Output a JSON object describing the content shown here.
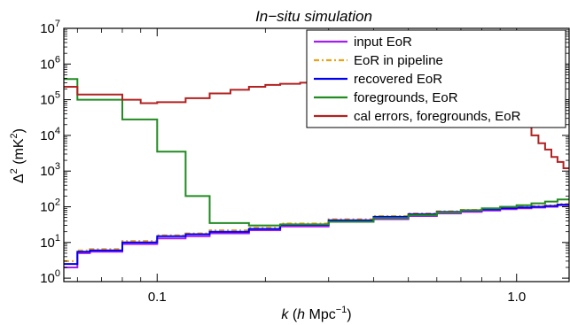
{
  "chart_data": {
    "type": "line",
    "title": "In−situ simulation",
    "xlabel": {
      "prefix": "k",
      "paren_open": " (",
      "h": "h",
      "unit": " Mpc",
      "exp": "−1",
      "paren_close": ")"
    },
    "ylabel": {
      "delta": "Δ",
      "sq": "2",
      "paren": " (mK",
      "sq2": "2",
      "close": ")"
    },
    "x_scale": "log",
    "y_scale": "log",
    "xlim": [
      0.055,
      1.4
    ],
    "ylim": [
      0.8,
      10000000
    ],
    "x_ticks": [
      {
        "value": 0.1,
        "label": "0.1"
      },
      {
        "value": 1.0,
        "label": "1.0"
      }
    ],
    "y_ticks": [
      {
        "value": 1,
        "base": "10",
        "exp": "0"
      },
      {
        "value": 10,
        "base": "10",
        "exp": "1"
      },
      {
        "value": 100,
        "base": "10",
        "exp": "2"
      },
      {
        "value": 1000,
        "base": "10",
        "exp": "3"
      },
      {
        "value": 10000,
        "base": "10",
        "exp": "4"
      },
      {
        "value": 100000,
        "base": "10",
        "exp": "5"
      },
      {
        "value": 1000000,
        "base": "10",
        "exp": "6"
      },
      {
        "value": 10000000,
        "base": "10",
        "exp": "7"
      }
    ],
    "legend_position": "top-right",
    "series": [
      {
        "name": "input EoR",
        "color": "#a020f0",
        "dash": "solid",
        "edges": [
          0.055,
          0.06,
          0.065,
          0.08,
          0.1,
          0.12,
          0.14,
          0.18,
          0.22,
          0.3,
          0.4,
          0.5,
          0.6,
          0.7,
          0.8,
          0.9,
          1.0,
          1.1,
          1.2,
          1.3,
          1.4
        ],
        "values": [
          2,
          5,
          5.5,
          9,
          13,
          15,
          18,
          22,
          28,
          38,
          45,
          55,
          65,
          72,
          78,
          85,
          90,
          95,
          100,
          110
        ]
      },
      {
        "name": "EoR in pipeline",
        "color": "#e8a317",
        "dash": "6,3,2,3",
        "edges": [
          0.055,
          0.06,
          0.065,
          0.08,
          0.1,
          0.12,
          0.14,
          0.18,
          0.22,
          0.3,
          0.4,
          0.5,
          0.6,
          0.7,
          0.8,
          0.9,
          1.0,
          1.1,
          1.2,
          1.3,
          1.4
        ],
        "values": [
          3,
          6,
          6.5,
          11,
          16,
          18,
          22,
          26,
          34,
          45,
          55,
          65,
          75,
          82,
          88,
          95,
          100,
          105,
          110,
          120
        ]
      },
      {
        "name": "recovered EoR",
        "color": "#0000ee",
        "dash": "solid",
        "edges": [
          0.055,
          0.06,
          0.065,
          0.08,
          0.1,
          0.12,
          0.14,
          0.18,
          0.22,
          0.3,
          0.4,
          0.5,
          0.6,
          0.7,
          0.8,
          0.9,
          1.0,
          1.1,
          1.2,
          1.3,
          1.4
        ],
        "values": [
          2.5,
          5.5,
          6,
          10,
          15,
          17,
          20,
          24,
          31,
          42,
          52,
          62,
          72,
          78,
          84,
          92,
          96,
          100,
          105,
          115
        ]
      },
      {
        "name": "foregrounds, EoR",
        "color": "#228b22",
        "dash": "solid",
        "edges": [
          0.055,
          0.06,
          0.08,
          0.1,
          0.12,
          0.14,
          0.18,
          0.22,
          0.3,
          0.4,
          0.5,
          0.6,
          0.7,
          0.8,
          0.9,
          1.0,
          1.1,
          1.2,
          1.3,
          1.4
        ],
        "values": [
          380000,
          100000,
          28000,
          3500,
          200,
          35,
          30,
          32,
          38,
          48,
          58,
          70,
          80,
          90,
          100,
          110,
          125,
          140,
          160
        ]
      },
      {
        "name": "cal errors, foregrounds, EoR",
        "color": "#b22222",
        "dash": "solid",
        "edges": [
          0.055,
          0.06,
          0.08,
          0.09,
          0.1,
          0.12,
          0.14,
          0.16,
          0.18,
          0.2,
          0.22,
          0.25,
          0.3,
          0.35,
          0.4,
          0.5,
          0.6,
          0.7,
          0.8,
          0.9,
          1.0,
          1.05,
          1.1,
          1.15,
          1.2,
          1.25,
          1.3,
          1.35,
          1.4
        ],
        "values": [
          230000,
          140000,
          100000,
          80000,
          85000,
          110000,
          150000,
          190000,
          230000,
          260000,
          280000,
          300000,
          320000,
          350000,
          380000,
          400000,
          420000,
          440000,
          450000,
          60000,
          30000,
          18000,
          10000,
          6000,
          4000,
          2500,
          1800,
          1200
        ]
      }
    ]
  }
}
